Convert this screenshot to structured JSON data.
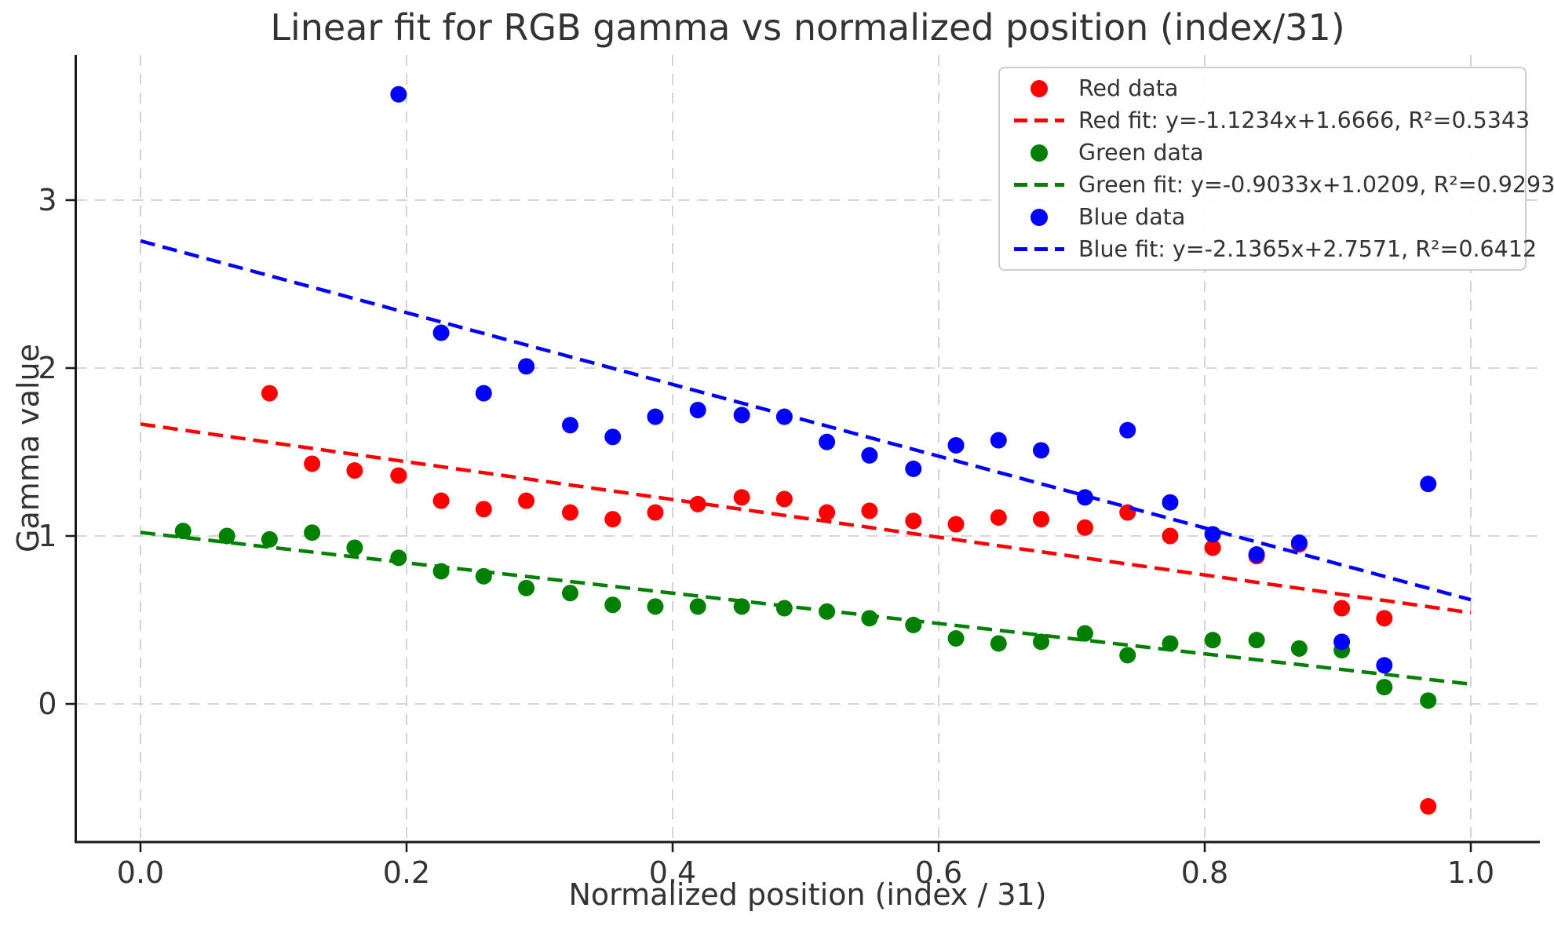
{
  "title": "Linear fit for RGB gamma vs normalized position (index/31)",
  "axes": {
    "xlabel": "Normalized position (index / 31)",
    "ylabel": "Gamma value"
  },
  "colors": {
    "red": "#ff0000",
    "green": "#008000",
    "blue": "#0000ff",
    "grid": "#d0d0d0",
    "spine": "#1a1a1a",
    "text": "#333333",
    "legend_border": "#cccccc",
    "background": "#ffffff"
  },
  "chart_data": {
    "type": "scatter",
    "title": "Linear fit for RGB gamma vs normalized position (index/31)",
    "xlabel": "Normalized position (index / 31)",
    "ylabel": "Gamma value",
    "xlim": [
      -0.049,
      1.052
    ],
    "ylim": [
      -0.822,
      3.864
    ],
    "grid": true,
    "legend_position": "upper right",
    "x_ticks": [
      0.0,
      0.2,
      0.4,
      0.6,
      0.8,
      1.0
    ],
    "x_tick_labels": [
      "0.0",
      "0.2",
      "0.4",
      "0.6",
      "0.8",
      "1.0"
    ],
    "y_ticks": [
      0,
      1,
      2,
      3
    ],
    "y_tick_labels": [
      "0",
      "1",
      "2",
      "3"
    ],
    "series": [
      {
        "name": "Red data",
        "kind": "scatter",
        "color": "#ff0000",
        "points": [
          [
            0.097,
            1.85
          ],
          [
            0.129,
            1.43
          ],
          [
            0.161,
            1.39
          ],
          [
            0.194,
            1.36
          ],
          [
            0.226,
            1.21
          ],
          [
            0.258,
            1.16
          ],
          [
            0.29,
            1.21
          ],
          [
            0.323,
            1.14
          ],
          [
            0.355,
            1.1
          ],
          [
            0.387,
            1.14
          ],
          [
            0.419,
            1.19
          ],
          [
            0.452,
            1.23
          ],
          [
            0.484,
            1.22
          ],
          [
            0.516,
            1.14
          ],
          [
            0.548,
            1.15
          ],
          [
            0.581,
            1.09
          ],
          [
            0.613,
            1.07
          ],
          [
            0.645,
            1.11
          ],
          [
            0.677,
            1.1
          ],
          [
            0.71,
            1.05
          ],
          [
            0.742,
            1.14
          ],
          [
            0.774,
            1.0
          ],
          [
            0.806,
            0.93
          ],
          [
            0.839,
            0.88
          ],
          [
            0.871,
            0.95
          ],
          [
            0.903,
            0.57
          ],
          [
            0.935,
            0.51
          ],
          [
            0.968,
            -0.61
          ]
        ]
      },
      {
        "name": "Red fit",
        "kind": "line",
        "dashed": true,
        "color": "#ff0000",
        "slope": -1.1234,
        "intercept": 1.6666,
        "r2": 0.5343,
        "x_range": [
          0,
          1
        ],
        "label": "Red fit: y=-1.1234x+1.6666, R²=0.5343"
      },
      {
        "name": "Green data",
        "kind": "scatter",
        "color": "#008000",
        "points": [
          [
            0.032,
            1.03
          ],
          [
            0.065,
            1.0
          ],
          [
            0.097,
            0.98
          ],
          [
            0.129,
            1.02
          ],
          [
            0.161,
            0.93
          ],
          [
            0.194,
            0.87
          ],
          [
            0.226,
            0.79
          ],
          [
            0.258,
            0.76
          ],
          [
            0.29,
            0.69
          ],
          [
            0.323,
            0.66
          ],
          [
            0.355,
            0.59
          ],
          [
            0.387,
            0.58
          ],
          [
            0.419,
            0.58
          ],
          [
            0.452,
            0.58
          ],
          [
            0.484,
            0.57
          ],
          [
            0.516,
            0.55
          ],
          [
            0.548,
            0.51
          ],
          [
            0.581,
            0.47
          ],
          [
            0.613,
            0.39
          ],
          [
            0.645,
            0.36
          ],
          [
            0.677,
            0.37
          ],
          [
            0.71,
            0.42
          ],
          [
            0.742,
            0.29
          ],
          [
            0.774,
            0.36
          ],
          [
            0.806,
            0.38
          ],
          [
            0.839,
            0.38
          ],
          [
            0.871,
            0.33
          ],
          [
            0.903,
            0.32
          ],
          [
            0.935,
            0.1
          ],
          [
            0.968,
            0.02
          ]
        ]
      },
      {
        "name": "Green fit",
        "kind": "line",
        "dashed": true,
        "color": "#008000",
        "slope": -0.9033,
        "intercept": 1.0209,
        "r2": 0.9293,
        "x_range": [
          0,
          1
        ],
        "label": "Green fit: y=-0.9033x+1.0209, R²=0.9293"
      },
      {
        "name": "Blue data",
        "kind": "scatter",
        "color": "#0000ff",
        "points": [
          [
            0.194,
            3.63
          ],
          [
            0.226,
            2.21
          ],
          [
            0.258,
            1.85
          ],
          [
            0.29,
            2.01
          ],
          [
            0.323,
            1.66
          ],
          [
            0.355,
            1.59
          ],
          [
            0.387,
            1.71
          ],
          [
            0.419,
            1.75
          ],
          [
            0.452,
            1.72
          ],
          [
            0.484,
            1.71
          ],
          [
            0.516,
            1.56
          ],
          [
            0.548,
            1.48
          ],
          [
            0.581,
            1.4
          ],
          [
            0.613,
            1.54
          ],
          [
            0.645,
            1.57
          ],
          [
            0.677,
            1.51
          ],
          [
            0.71,
            1.23
          ],
          [
            0.742,
            1.63
          ],
          [
            0.774,
            1.2
          ],
          [
            0.806,
            1.01
          ],
          [
            0.839,
            0.89
          ],
          [
            0.871,
            0.96
          ],
          [
            0.903,
            0.37
          ],
          [
            0.935,
            0.23
          ],
          [
            0.968,
            1.31
          ]
        ]
      },
      {
        "name": "Blue fit",
        "kind": "line",
        "dashed": true,
        "color": "#0000ff",
        "slope": -2.1365,
        "intercept": 2.7571,
        "r2": 0.6412,
        "x_range": [
          0,
          1
        ],
        "label": "Blue fit: y=-2.1365x+2.7571, R²=0.6412"
      }
    ],
    "legend_entries": [
      {
        "label": "Red data",
        "color": "#ff0000",
        "marker": "dot"
      },
      {
        "label": "Red fit: y=-1.1234x+1.6666, R²=0.5343",
        "color": "#ff0000",
        "marker": "dash"
      },
      {
        "label": "Green data",
        "color": "#008000",
        "marker": "dot"
      },
      {
        "label": "Green fit: y=-0.9033x+1.0209, R²=0.9293",
        "color": "#008000",
        "marker": "dash"
      },
      {
        "label": "Blue data",
        "color": "#0000ff",
        "marker": "dot"
      },
      {
        "label": "Blue fit: y=-2.1365x+2.7571, R²=0.6412",
        "color": "#0000ff",
        "marker": "dash"
      }
    ]
  }
}
